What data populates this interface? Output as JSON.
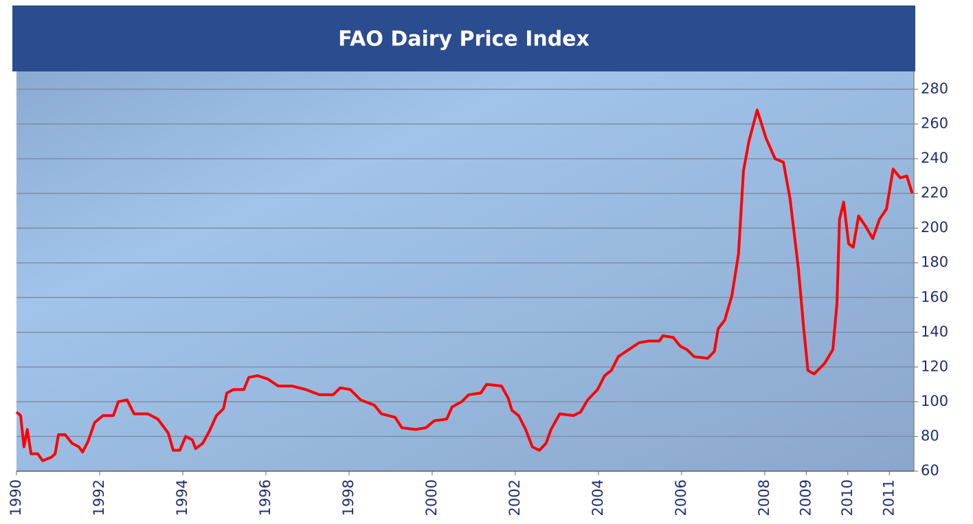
{
  "chart_data": {
    "type": "line",
    "title": "FAO Dairy Price Index",
    "x": [
      1990.0,
      1990.1,
      1990.18,
      1990.26,
      1990.35,
      1990.51,
      1990.63,
      1990.84,
      1990.93,
      1991.01,
      1991.17,
      1991.34,
      1991.5,
      1991.59,
      1991.72,
      1991.88,
      1992.08,
      1992.33,
      1992.45,
      1992.66,
      1992.83,
      1993.16,
      1993.4,
      1993.65,
      1993.77,
      1993.93,
      1994.07,
      1994.23,
      1994.31,
      1994.48,
      1994.64,
      1994.81,
      1994.98,
      1995.06,
      1995.22,
      1995.47,
      1995.59,
      1995.8,
      1996.05,
      1996.3,
      1996.63,
      1996.96,
      1997.29,
      1997.62,
      1997.79,
      1998.03,
      1998.28,
      1998.61,
      1998.78,
      1999.11,
      1999.27,
      1999.6,
      1999.85,
      2000.05,
      2000.35,
      2000.48,
      2000.71,
      2000.88,
      2001.17,
      2001.31,
      2001.67,
      2001.83,
      2001.92,
      2002.08,
      2002.25,
      2002.41,
      2002.58,
      2002.74,
      2002.86,
      2003.07,
      2003.4,
      2003.57,
      2003.74,
      2003.98,
      2004.15,
      2004.31,
      2004.48,
      2004.73,
      2004.98,
      2005.22,
      2005.47,
      2005.55,
      2005.8,
      2005.97,
      2006.13,
      2006.3,
      2006.63,
      2006.79,
      2006.88,
      2007.04,
      2007.21,
      2007.37,
      2007.49,
      2007.62,
      2007.82,
      2008.03,
      2008.25,
      2008.45,
      2008.61,
      2008.81,
      2008.94,
      2009.04,
      2009.19,
      2009.44,
      2009.64,
      2009.74,
      2009.8,
      2009.9,
      2010.02,
      2010.13,
      2010.26,
      2010.43,
      2010.6,
      2010.76,
      2010.93,
      2011.09,
      2011.26,
      2011.42,
      2011.55
    ],
    "series": [
      {
        "name": "FAO Dairy Price Index",
        "color": "#ff0000",
        "values": [
          94,
          92,
          74,
          84,
          70,
          70,
          66,
          68,
          70,
          81,
          81,
          76,
          74,
          71,
          77,
          88,
          92,
          92,
          100,
          101,
          93,
          93,
          90,
          82,
          72,
          72,
          80,
          78,
          73,
          76,
          83,
          92,
          96,
          105,
          107,
          107,
          114,
          115,
          113,
          109,
          109,
          107,
          104,
          104,
          108,
          107,
          101,
          98,
          93,
          91,
          85,
          84,
          85,
          89,
          90,
          97,
          100,
          104,
          105,
          110,
          109,
          102,
          95,
          92,
          84,
          74,
          72,
          76,
          84,
          93,
          92,
          94,
          101,
          107,
          115,
          118,
          126,
          130,
          134,
          135,
          135,
          138,
          137,
          132,
          130,
          126,
          125,
          129,
          142,
          147,
          161,
          185,
          233,
          250,
          268,
          252,
          240,
          238,
          217,
          177,
          142,
          118,
          116,
          122,
          130,
          157,
          205,
          215,
          191,
          189,
          207,
          201,
          194,
          205,
          211,
          234,
          229,
          230,
          220
        ]
      }
    ],
    "xlim": [
      1990,
      2011.59
    ],
    "xticks": [
      1990,
      1992,
      1994,
      1996,
      1998,
      2000,
      2002,
      2004,
      2006,
      2008,
      2009,
      2010,
      2011
    ],
    "ylim": [
      60,
      280
    ],
    "yticks": [
      60,
      80,
      100,
      120,
      140,
      160,
      180,
      200,
      220,
      240,
      260,
      280
    ],
    "grid": true
  }
}
